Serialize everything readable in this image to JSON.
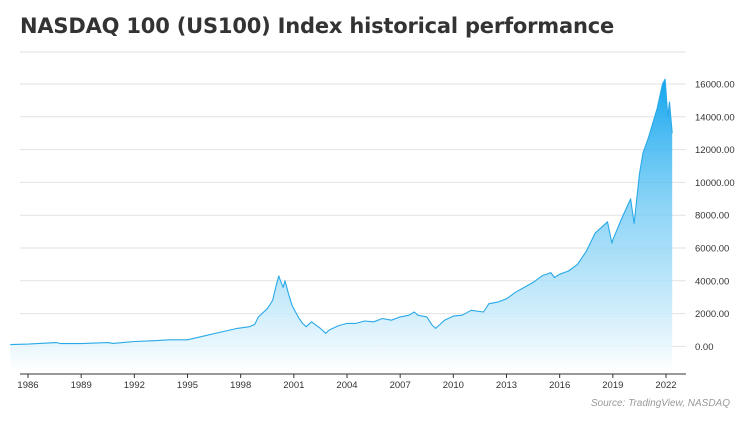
{
  "title": "NASDAQ 100 (US100) Index historical performance",
  "source": "Source: TradingView, NASDAQ",
  "colors": {
    "line": "#29a9e8",
    "area_top": "#12a5ef",
    "area_bottom": "#ffffff",
    "grid": "#e2e2e2",
    "axis": "#333333"
  },
  "chart_data": {
    "type": "area",
    "title": "NASDAQ 100 (US100) Index historical performance",
    "xlabel": "",
    "ylabel": "",
    "xlim": [
      1985,
      2022.6
    ],
    "ylim": [
      -1300,
      17000
    ],
    "grid": true,
    "y_axis_side": "right",
    "x_ticks": [
      1986,
      1989,
      1992,
      1995,
      1998,
      2001,
      2004,
      2007,
      2010,
      2013,
      2016,
      2019,
      2022
    ],
    "x_tick_labels": [
      "1986",
      "1989",
      "1992",
      "1995",
      "1998",
      "2001",
      "2004",
      "2007",
      "2010",
      "2013",
      "2016",
      "2019",
      "2022"
    ],
    "y_ticks": [
      0,
      2000,
      4000,
      6000,
      8000,
      10000,
      12000,
      14000,
      16000
    ],
    "y_tick_labels": [
      "0.00",
      "2000.00",
      "4000.00",
      "6000.00",
      "8000.00",
      "10000.00",
      "12000.00",
      "14000.00",
      "16000.00"
    ],
    "series": [
      {
        "x": [
          1985.0,
          1986.0,
          1987.6,
          1987.85,
          1989.0,
          1990.5,
          1990.8,
          1992.0,
          1993.0,
          1994.0,
          1995.0,
          1996.0,
          1997.0,
          1997.8,
          1998.5,
          1998.8,
          1999.0,
          1999.5,
          1999.8,
          2000.0,
          2000.15,
          2000.25,
          2000.4,
          2000.5,
          2000.7,
          2000.9,
          2001.0,
          2001.3,
          2001.5,
          2001.7,
          2002.0,
          2002.5,
          2002.8,
          2003.0,
          2003.5,
          2004.0,
          2004.5,
          2005.0,
          2005.5,
          2006.0,
          2006.5,
          2007.0,
          2007.5,
          2007.8,
          2008.0,
          2008.5,
          2008.8,
          2009.0,
          2009.2,
          2009.5,
          2010.0,
          2010.5,
          2011.0,
          2011.7,
          2012.0,
          2012.5,
          2013.0,
          2013.5,
          2014.0,
          2014.5,
          2015.0,
          2015.5,
          2015.7,
          2016.0,
          2016.5,
          2017.0,
          2017.5,
          2018.0,
          2018.7,
          2018.95,
          2019.0,
          2019.5,
          2020.0,
          2020.2,
          2020.3,
          2020.5,
          2020.7,
          2021.0,
          2021.5,
          2021.8,
          2021.95,
          2022.1,
          2022.2,
          2022.35
        ],
        "y": [
          110,
          140,
          230,
          170,
          170,
          230,
          180,
          300,
          340,
          400,
          400,
          650,
          900,
          1100,
          1200,
          1350,
          1800,
          2300,
          2800,
          3700,
          4300,
          4000,
          3600,
          4000,
          3200,
          2500,
          2300,
          1700,
          1400,
          1200,
          1500,
          1100,
          800,
          1000,
          1250,
          1400,
          1400,
          1550,
          1500,
          1700,
          1600,
          1800,
          1900,
          2100,
          1900,
          1800,
          1300,
          1100,
          1300,
          1600,
          1850,
          1900,
          2200,
          2100,
          2600,
          2700,
          2900,
          3300,
          3600,
          3900,
          4300,
          4500,
          4200,
          4400,
          4600,
          5000,
          5800,
          6900,
          7600,
          6300,
          6500,
          7800,
          9000,
          7500,
          8500,
          10500,
          11800,
          12700,
          14500,
          16000,
          16300,
          14000,
          14900,
          13000
        ]
      }
    ]
  }
}
